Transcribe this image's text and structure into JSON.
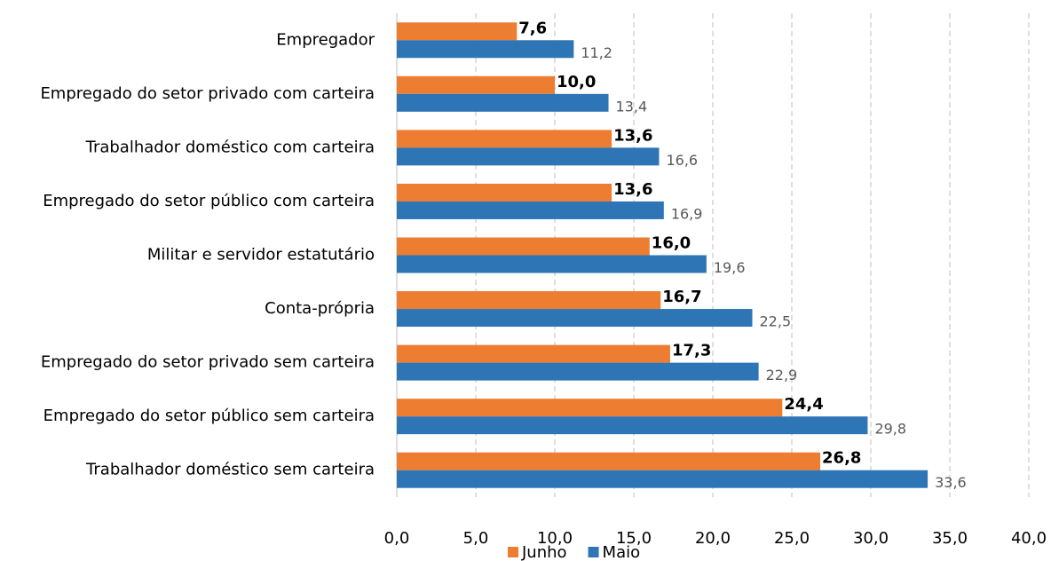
{
  "chart_data": {
    "type": "bar",
    "orientation": "horizontal",
    "categories": [
      "Empregador",
      "Empregado do setor privado com carteira",
      "Trabalhador doméstico com carteira",
      "Empregado do setor público com carteira",
      "Militar e servidor estatutário",
      "Conta-própria",
      "Empregado do setor privado sem carteira",
      "Empregado do setor público sem carteira",
      "Trabalhador doméstico sem carteira"
    ],
    "series": [
      {
        "name": "Junho",
        "color": "#ED7D31",
        "values": [
          7.6,
          10.0,
          13.6,
          13.6,
          16.0,
          16.7,
          17.3,
          24.4,
          26.8
        ],
        "value_labels": [
          "7,6",
          "10,0",
          "13,6",
          "13,6",
          "16,0",
          "16,7",
          "17,3",
          "24,4",
          "26,8"
        ]
      },
      {
        "name": "Maio",
        "color": "#2E75B6",
        "values": [
          11.2,
          13.4,
          16.6,
          16.9,
          19.6,
          22.5,
          22.9,
          29.8,
          33.6
        ],
        "value_labels": [
          "11,2",
          "13,4",
          "16,6",
          "16,9",
          "19,6",
          "22,5",
          "22,9",
          "29,8",
          "33,6"
        ]
      }
    ],
    "xlim": [
      0,
      40
    ],
    "xticks": [
      {
        "value": 0,
        "label": "0,0"
      },
      {
        "value": 5,
        "label": "5,0"
      },
      {
        "value": 10,
        "label": "10,0"
      },
      {
        "value": 15,
        "label": "15,0"
      },
      {
        "value": 20,
        "label": "20,0"
      },
      {
        "value": 25,
        "label": "25,0"
      },
      {
        "value": 30,
        "label": "30,0"
      },
      {
        "value": 35,
        "label": "35,0"
      },
      {
        "value": 40,
        "label": "40,0"
      }
    ],
    "grid": true,
    "legend": "bottom"
  }
}
